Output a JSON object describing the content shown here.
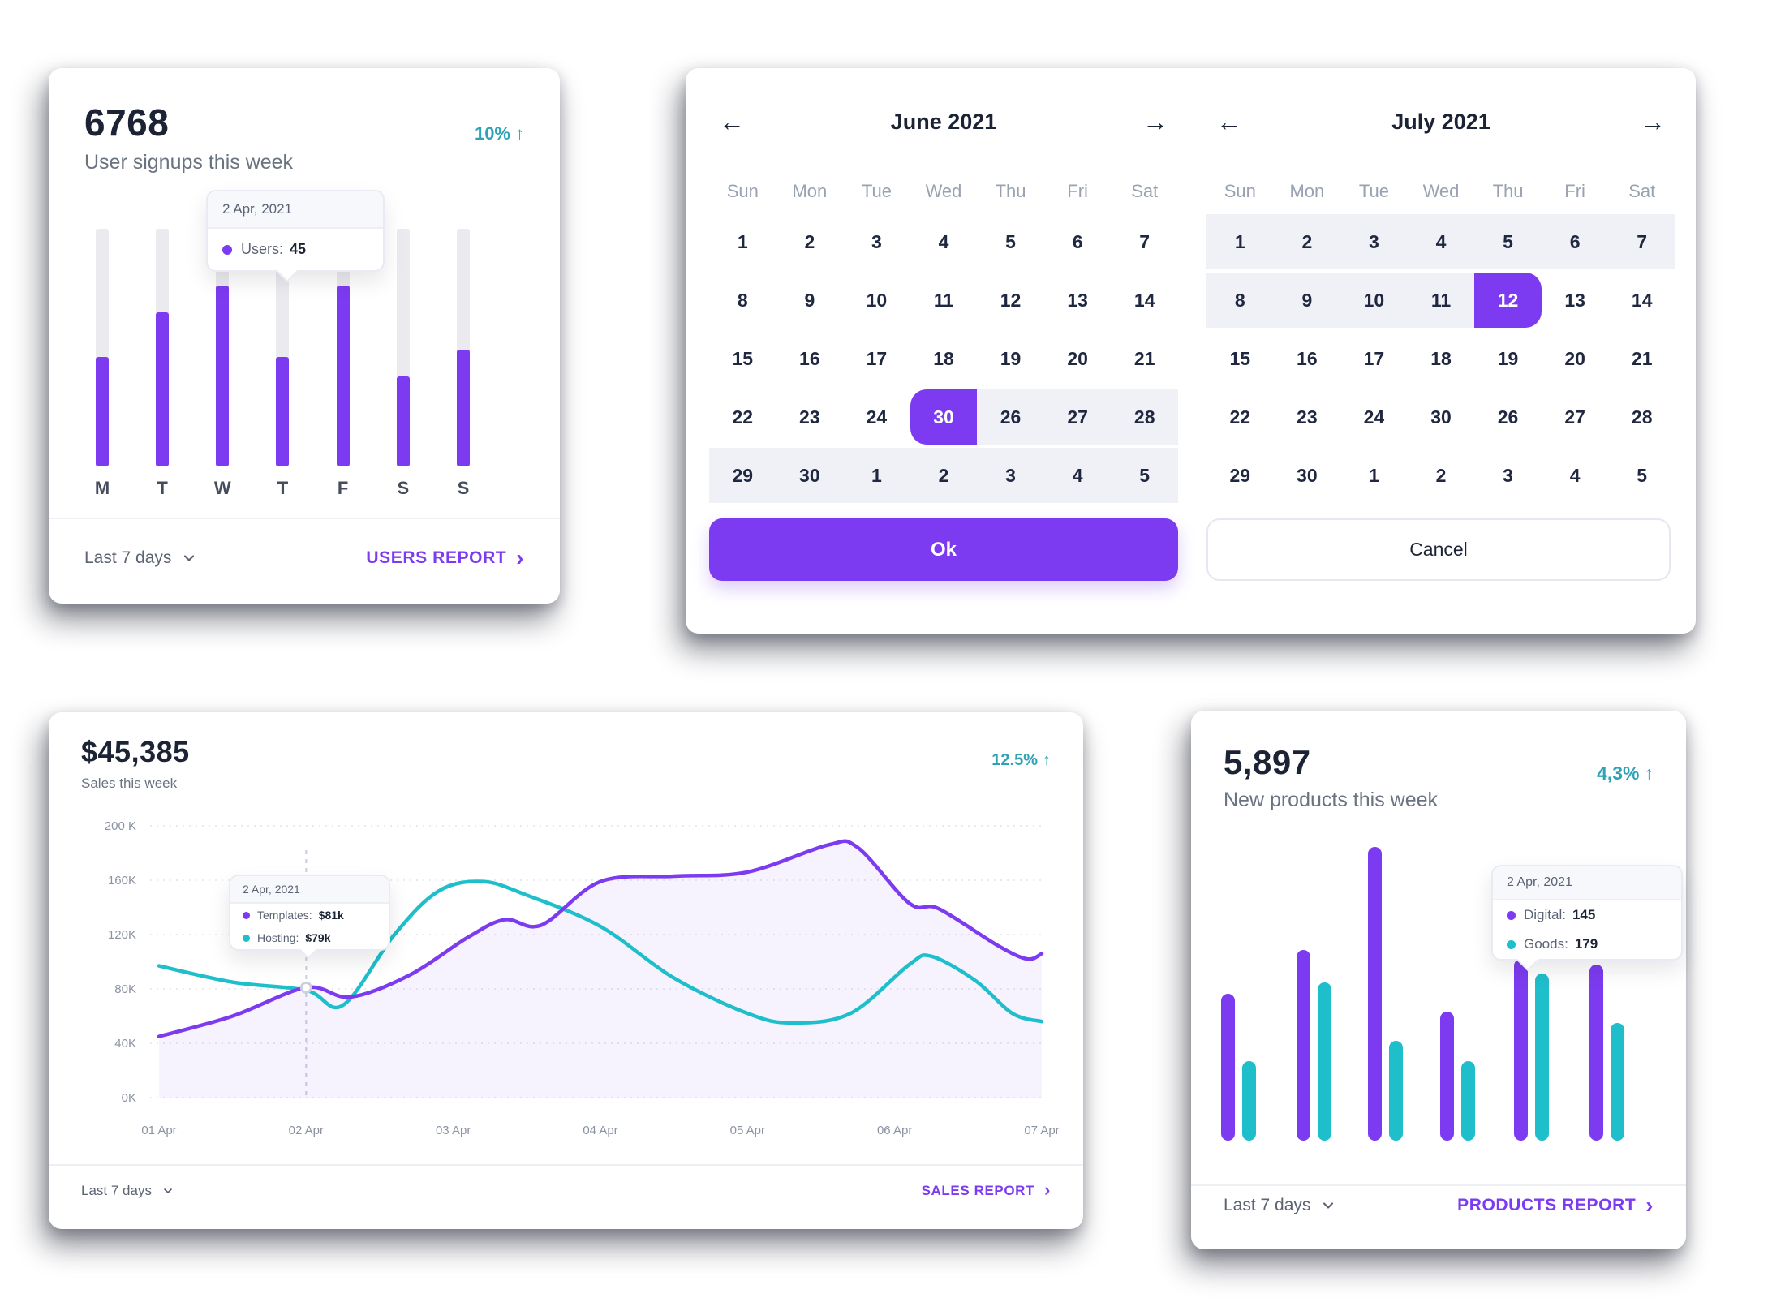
{
  "icons": {
    "arrow_up": "↑",
    "arrow_left": "←",
    "arrow_right": "→",
    "chevron_right": "›"
  },
  "colors": {
    "purple": "#7C3BF0",
    "teal": "#1FBECB",
    "delta_text": "#2FA3B6",
    "range_bg": "#F0F1F6",
    "track_gray": "#EAEAEF"
  },
  "users_card": {
    "value": "6768",
    "subtitle": "User signups this week",
    "delta": "10%",
    "period": "Last 7 days",
    "report_link": "USERS REPORT",
    "tooltip": {
      "date": "2 Apr, 2021",
      "label": "Users:",
      "value": "45"
    },
    "chart_data": {
      "type": "bar",
      "categories": [
        "M",
        "T",
        "W",
        "T",
        "F",
        "S",
        "S"
      ],
      "values_percent_of_max": [
        46,
        65,
        76,
        46,
        76,
        38,
        49
      ],
      "track_percent": 100,
      "tooltip_day_index": 3,
      "tooltip_value_users": 45
    }
  },
  "calendar_card": {
    "ok_label": "Ok",
    "cancel_label": "Cancel",
    "months": [
      {
        "title": "June 2021",
        "weekdays": [
          "Sun",
          "Mon",
          "Tue",
          "Wed",
          "Thu",
          "Fri",
          "Sat"
        ],
        "days": [
          [
            "1",
            "n"
          ],
          [
            "2",
            "n"
          ],
          [
            "3",
            "n"
          ],
          [
            "4",
            "n"
          ],
          [
            "5",
            "n"
          ],
          [
            "6",
            "n"
          ],
          [
            "7",
            "n"
          ],
          [
            "8",
            "n"
          ],
          [
            "9",
            "n"
          ],
          [
            "10",
            "n"
          ],
          [
            "11",
            "n"
          ],
          [
            "12",
            "n"
          ],
          [
            "13",
            "n"
          ],
          [
            "14",
            "n"
          ],
          [
            "15",
            "n"
          ],
          [
            "16",
            "n"
          ],
          [
            "17",
            "n"
          ],
          [
            "18",
            "n"
          ],
          [
            "19",
            "n"
          ],
          [
            "20",
            "n"
          ],
          [
            "21",
            "n"
          ],
          [
            "22",
            "n"
          ],
          [
            "23",
            "n"
          ],
          [
            "24",
            "n"
          ],
          [
            "30",
            "ss"
          ],
          [
            "26",
            "r"
          ],
          [
            "27",
            "r"
          ],
          [
            "28",
            "r"
          ],
          [
            "29",
            "r"
          ],
          [
            "30",
            "r"
          ],
          [
            "1",
            "r"
          ],
          [
            "2",
            "r"
          ],
          [
            "3",
            "r"
          ],
          [
            "4",
            "r"
          ],
          [
            "5",
            "r"
          ]
        ]
      },
      {
        "title": "July 2021",
        "weekdays": [
          "Sun",
          "Mon",
          "Tue",
          "Wed",
          "Thu",
          "Fri",
          "Sat"
        ],
        "days": [
          [
            "1",
            "r"
          ],
          [
            "2",
            "r"
          ],
          [
            "3",
            "r"
          ],
          [
            "4",
            "r"
          ],
          [
            "5",
            "r"
          ],
          [
            "6",
            "r"
          ],
          [
            "7",
            "r"
          ],
          [
            "8",
            "r"
          ],
          [
            "9",
            "r"
          ],
          [
            "10",
            "r"
          ],
          [
            "11",
            "r"
          ],
          [
            "12",
            "se"
          ],
          [
            "13",
            "n"
          ],
          [
            "14",
            "n"
          ],
          [
            "15",
            "n"
          ],
          [
            "16",
            "n"
          ],
          [
            "17",
            "n"
          ],
          [
            "18",
            "n"
          ],
          [
            "19",
            "n"
          ],
          [
            "20",
            "n"
          ],
          [
            "21",
            "n"
          ],
          [
            "22",
            "n"
          ],
          [
            "23",
            "n"
          ],
          [
            "24",
            "n"
          ],
          [
            "30",
            "n"
          ],
          [
            "26",
            "n"
          ],
          [
            "27",
            "n"
          ],
          [
            "28",
            "n"
          ],
          [
            "29",
            "n"
          ],
          [
            "30",
            "n"
          ],
          [
            "1",
            "n"
          ],
          [
            "2",
            "n"
          ],
          [
            "3",
            "n"
          ],
          [
            "4",
            "n"
          ],
          [
            "5",
            "n"
          ]
        ]
      }
    ],
    "legend_states": {
      "ss": "selected range start",
      "se": "selected range end",
      "r": "in selected range",
      "n": "normal"
    }
  },
  "sales_card": {
    "value": "$45,385",
    "subtitle": "Sales this week",
    "delta": "12.5%",
    "period": "Last 7 days",
    "report_link": "SALES REPORT",
    "tooltip": {
      "date": "2 Apr, 2021",
      "rows": [
        {
          "label": "Templates:",
          "value": "$81k"
        },
        {
          "label": "Hosting:",
          "value": "$79k"
        }
      ]
    },
    "chart_data": {
      "type": "line",
      "x_labels": [
        "01 Apr",
        "02 Apr",
        "03 Apr",
        "04 Apr",
        "05 Apr",
        "06 Apr",
        "07 Apr"
      ],
      "y_tick_labels": [
        "200 K",
        "160K",
        "120K",
        "80K",
        "40K",
        "0K"
      ],
      "y_tick_values": [
        200,
        160,
        120,
        80,
        40,
        0
      ],
      "ylim": [
        0,
        200
      ],
      "grid": "dotted horizontal",
      "cursor_x": 2,
      "marker": {
        "x": 2,
        "y": 81
      },
      "series": [
        {
          "name": "Templates",
          "color": "#7C3BF0",
          "area": true,
          "points": [
            [
              1,
              45
            ],
            [
              1.5,
              60
            ],
            [
              2,
              81
            ],
            [
              2.3,
              74
            ],
            [
              2.7,
              90
            ],
            [
              3.1,
              118
            ],
            [
              3.35,
              131
            ],
            [
              3.6,
              127
            ],
            [
              4,
              159
            ],
            [
              4.5,
              163
            ],
            [
              5,
              166
            ],
            [
              5.55,
              186
            ],
            [
              5.75,
              184
            ],
            [
              6.1,
              143
            ],
            [
              6.3,
              139
            ],
            [
              6.7,
              112
            ],
            [
              6.9,
              102
            ],
            [
              7,
              106
            ]
          ]
        },
        {
          "name": "Hosting",
          "color": "#1FBECB",
          "area": false,
          "points": [
            [
              1,
              97
            ],
            [
              1.5,
              85
            ],
            [
              2,
              79
            ],
            [
              2.25,
              68
            ],
            [
              2.6,
              120
            ],
            [
              2.9,
              152
            ],
            [
              3.2,
              159
            ],
            [
              3.5,
              149
            ],
            [
              4,
              126
            ],
            [
              4.5,
              88
            ],
            [
              5,
              62
            ],
            [
              5.3,
              55
            ],
            [
              5.7,
              62
            ],
            [
              6.1,
              98
            ],
            [
              6.25,
              104
            ],
            [
              6.55,
              86
            ],
            [
              6.8,
              62
            ],
            [
              7,
              56
            ]
          ]
        }
      ]
    }
  },
  "products_card": {
    "value": "5,897",
    "subtitle": "New products this week",
    "delta": "4,3%",
    "period": "Last 7 days",
    "report_link": "PRODUCTS REPORT",
    "tooltip": {
      "date": "2 Apr, 2021",
      "rows": [
        {
          "label": "Digital:",
          "value": "145"
        },
        {
          "label": "Goods:",
          "value": "179"
        }
      ]
    },
    "chart_data": {
      "type": "bar",
      "groups": 6,
      "series": [
        {
          "name": "Digital",
          "color": "#7C3BF0",
          "values_percent_of_max": [
            50,
            65,
            100,
            44,
            62,
            60
          ]
        },
        {
          "name": "Goods",
          "color": "#1FBECB",
          "values_percent_of_max": [
            27,
            54,
            34,
            27,
            57,
            40
          ]
        }
      ],
      "tooltip_values": {
        "Digital": 145,
        "Goods": 179
      }
    }
  }
}
